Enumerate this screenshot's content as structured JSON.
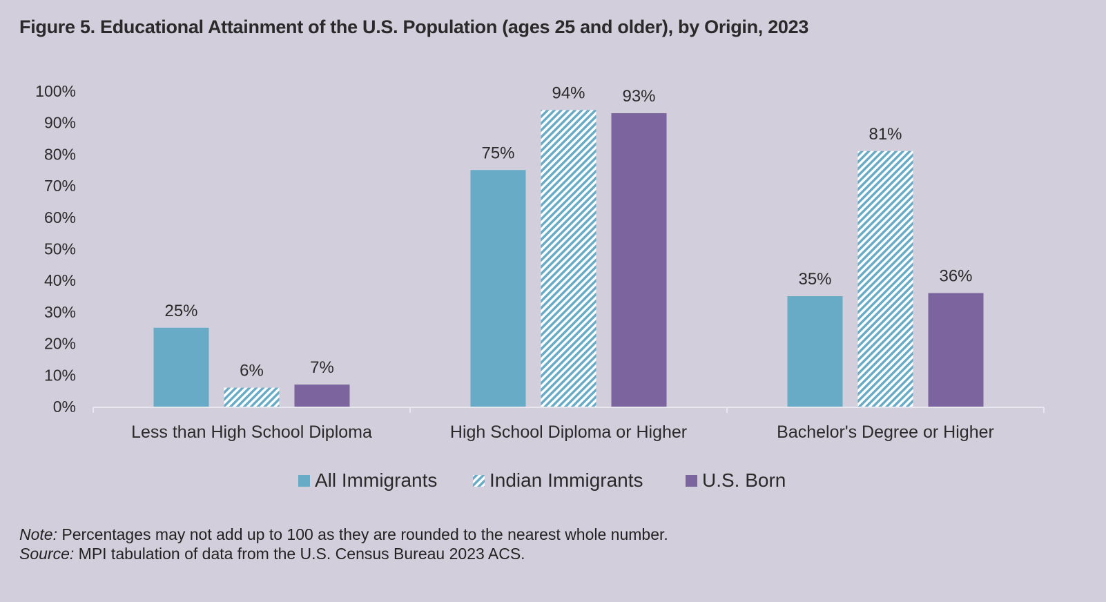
{
  "title": "Figure 5. Educational Attainment of the U.S. Population (ages 25 and older), by Origin, 2023",
  "notes": {
    "note_label": "Note:",
    "note_text": "Percentages may not add up to 100 as they are rounded to the nearest whole number.",
    "source_label": "Source:",
    "source_text": "MPI tabulation of data from the U.S. Census Bureau 2023 ACS."
  },
  "colors": {
    "all_immigrants": "#67abc6",
    "indian_immigrants_stripe": "#67abc6",
    "us_born": "#7c649e",
    "background": "#d2cedb",
    "axis": "#e8e6ee"
  },
  "chart_data": {
    "type": "bar",
    "categories": [
      "Less than High School Diploma",
      "High School Diploma or Higher",
      "Bachelor's Degree or Higher"
    ],
    "series": [
      {
        "name": "All Immigrants",
        "values": [
          25,
          75,
          35
        ],
        "labels": [
          "25%",
          "75%",
          "35%"
        ],
        "pattern": "solid",
        "color": "#67abc6"
      },
      {
        "name": "Indian Immigrants",
        "values": [
          6,
          94,
          81
        ],
        "labels": [
          "6%",
          "94%",
          "81%"
        ],
        "pattern": "diagonal-stripes",
        "color": "#67abc6"
      },
      {
        "name": "U.S. Born",
        "values": [
          7,
          93,
          36
        ],
        "labels": [
          "7%",
          "93%",
          "36%"
        ],
        "pattern": "solid",
        "color": "#7c649e"
      }
    ],
    "yticks": [
      "0%",
      "10%",
      "20%",
      "30%",
      "40%",
      "50%",
      "60%",
      "70%",
      "80%",
      "90%",
      "100%"
    ],
    "ylim": [
      0,
      100
    ],
    "grid": false,
    "legend": "bottom-center"
  }
}
